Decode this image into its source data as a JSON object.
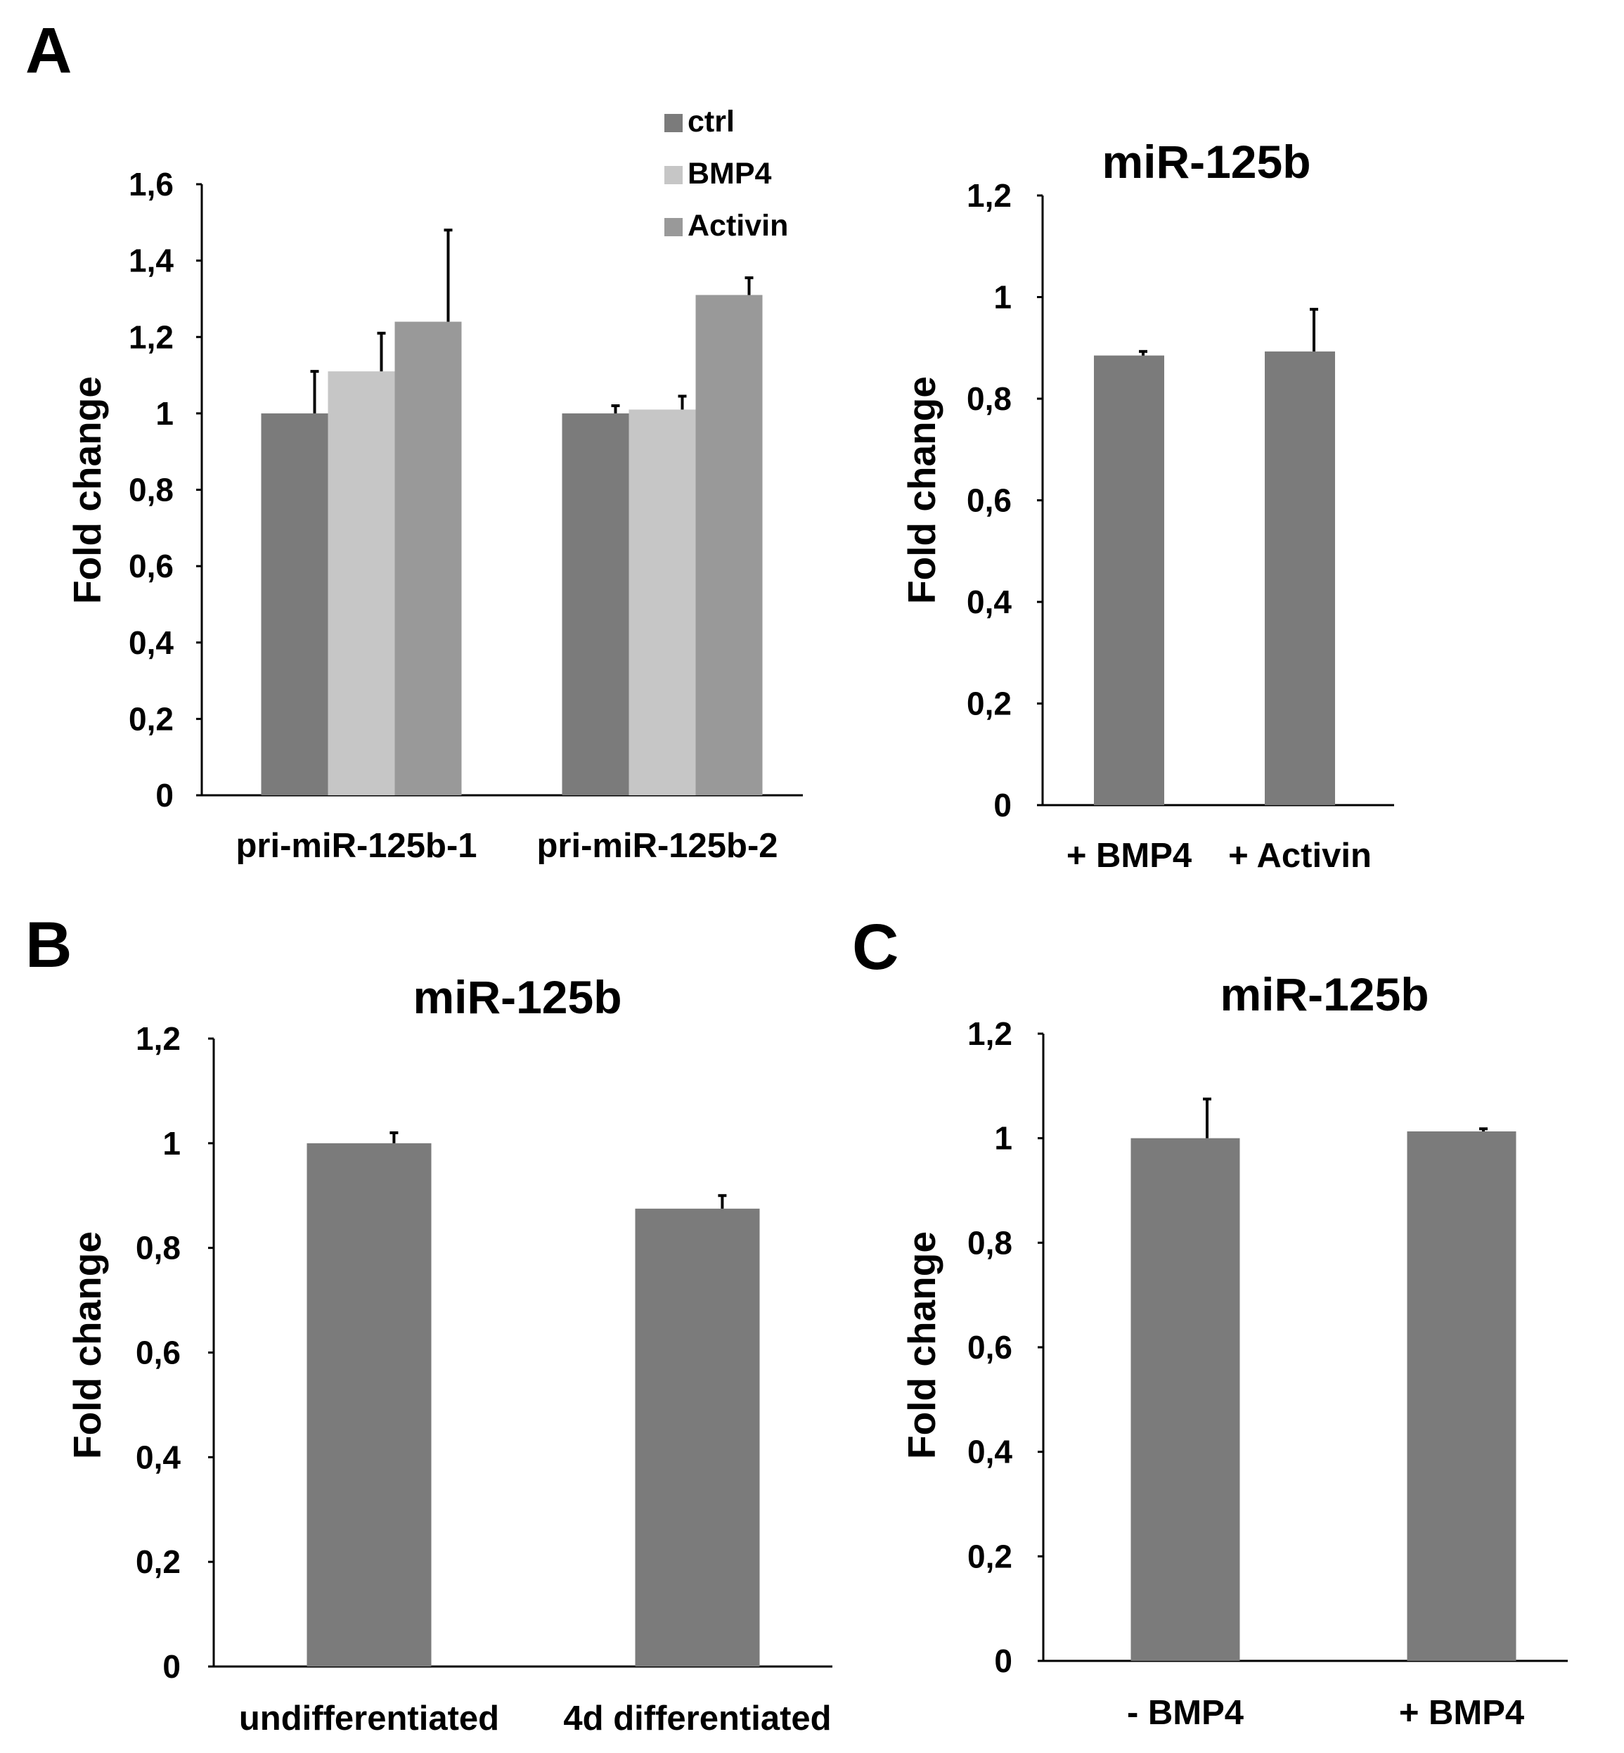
{
  "panel_letters": [
    "A",
    "B",
    "C"
  ],
  "colors": {
    "ctrl": "#7b7b7b",
    "BMP4": "#c6c6c6",
    "Activin": "#999999",
    "single": "#7b7b7b",
    "axis": "#000000"
  },
  "chart_data": [
    {
      "id": "A-left",
      "type": "bar",
      "title": "",
      "xlabel": "",
      "ylabel": "Fold change",
      "ylim": [
        0,
        1.6
      ],
      "yticks": [
        "0",
        "0,2",
        "0,4",
        "0,6",
        "0,8",
        "1",
        "1,2",
        "1,4",
        "1,6"
      ],
      "categories": [
        "pri-miR-125b-1",
        "pri-miR-125b-2"
      ],
      "series": [
        {
          "name": "ctrl",
          "values": [
            1.0,
            1.0
          ],
          "errors": [
            0.11,
            0.02
          ]
        },
        {
          "name": "BMP4",
          "values": [
            1.11,
            1.01
          ],
          "errors": [
            0.1,
            0.035
          ]
        },
        {
          "name": "Activin",
          "values": [
            1.24,
            1.31
          ],
          "errors": [
            0.24,
            0.045
          ]
        }
      ],
      "legend": "top-right",
      "grid": false
    },
    {
      "id": "A-right",
      "type": "bar",
      "title": "miR-125b",
      "xlabel": "",
      "ylabel": "Fold change",
      "ylim": [
        0,
        1.2
      ],
      "yticks": [
        "0",
        "0,2",
        "0,4",
        "0,6",
        "0,8",
        "1",
        "1,2"
      ],
      "categories": [
        "+ BMP4",
        "+ Activin"
      ],
      "values": [
        0.885,
        0.893
      ],
      "errors": [
        0.008,
        0.083
      ],
      "grid": false
    },
    {
      "id": "B",
      "type": "bar",
      "title": "miR-125b",
      "xlabel": "",
      "ylabel": "Fold change",
      "ylim": [
        0,
        1.2
      ],
      "yticks": [
        "0",
        "0,2",
        "0,4",
        "0,6",
        "0,8",
        "1",
        "1,2"
      ],
      "categories": [
        "undifferentiated",
        "4d differentiated"
      ],
      "values": [
        1.0,
        0.875
      ],
      "errors": [
        0.02,
        0.025
      ],
      "grid": false
    },
    {
      "id": "C",
      "type": "bar",
      "title": "miR-125b",
      "xlabel": "",
      "ylabel": "Fold change",
      "ylim": [
        0,
        1.2
      ],
      "yticks": [
        "0",
        "0,2",
        "0,4",
        "0,6",
        "0,8",
        "1",
        "1,2"
      ],
      "categories": [
        "- BMP4",
        "+ BMP4"
      ],
      "values": [
        1.0,
        1.013
      ],
      "errors": [
        0.075,
        0.005
      ],
      "grid": false
    }
  ]
}
